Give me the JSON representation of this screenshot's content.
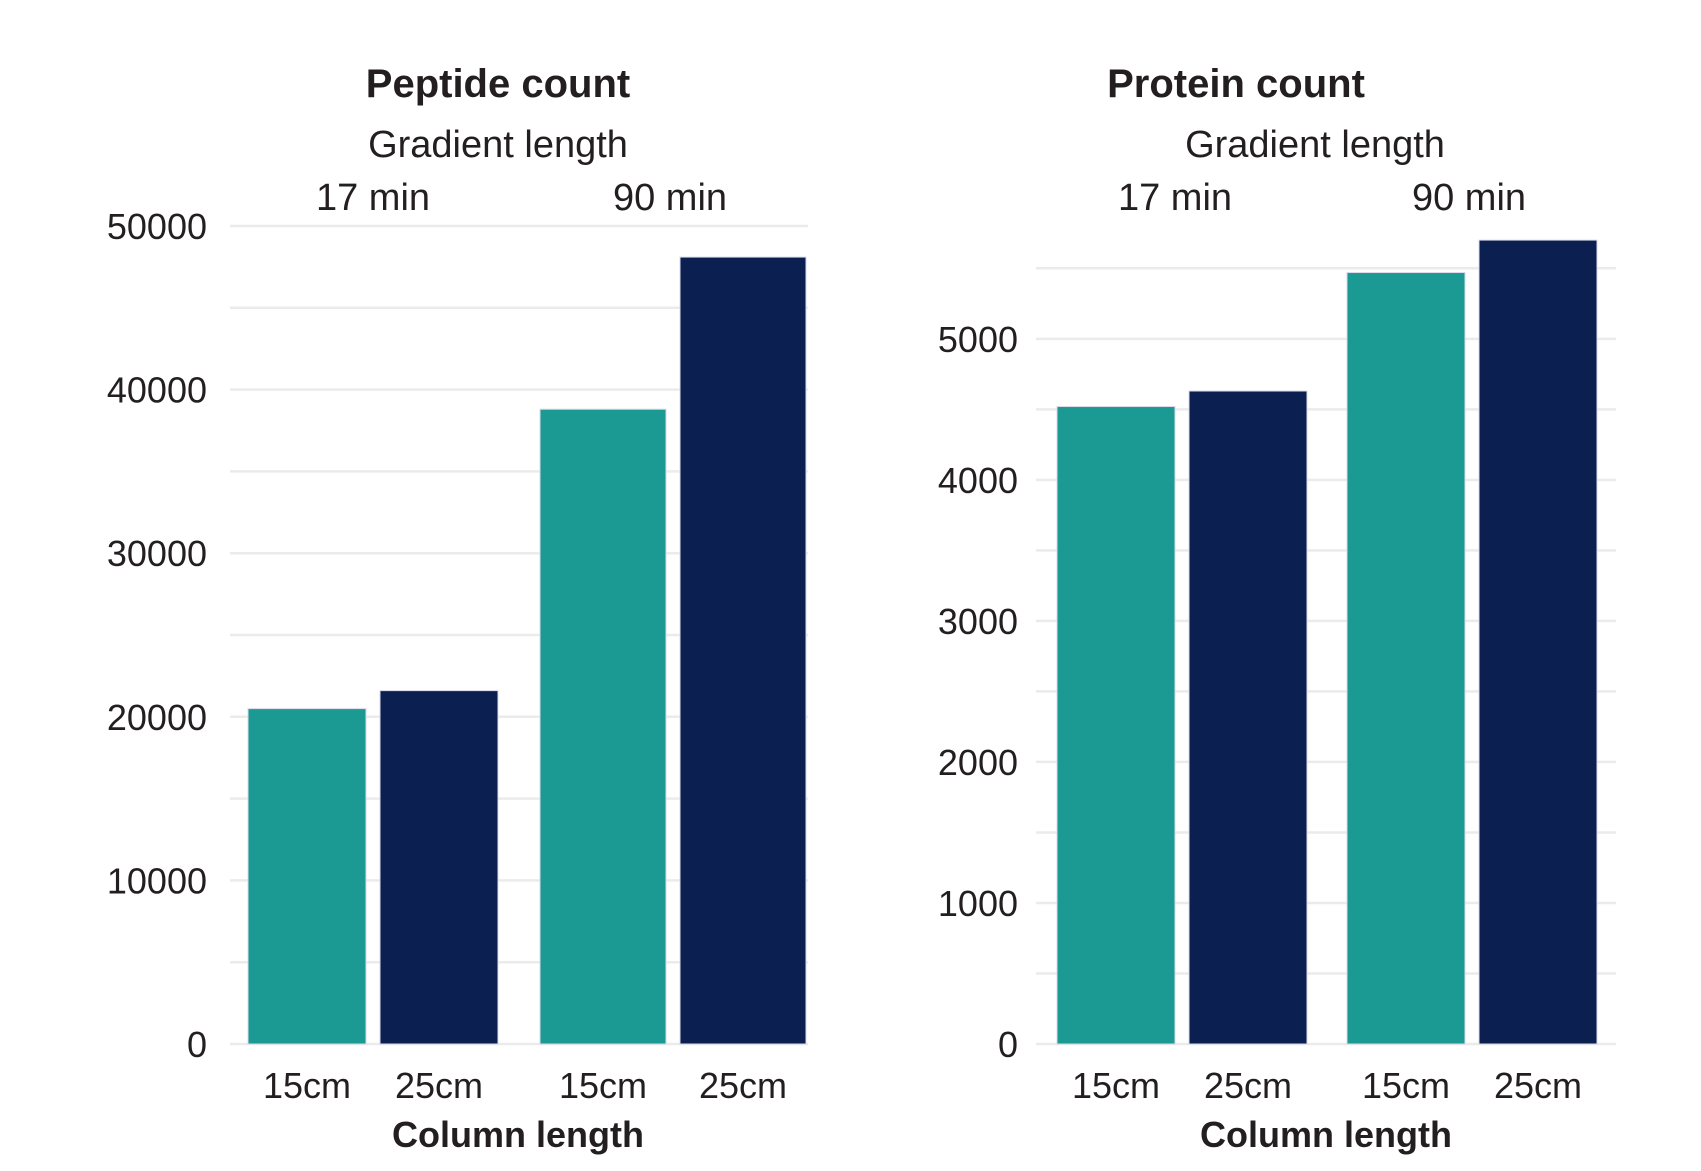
{
  "colors": {
    "teal": "#1a9a93",
    "navy": "#0b2050",
    "grid": "#ebebeb",
    "text": "#231f20"
  },
  "chart_data": [
    {
      "type": "bar",
      "title": "Peptide count",
      "facet_label": "Gradient length",
      "xlabel": "Column length",
      "ylabel": "",
      "ylim": [
        0,
        50000
      ],
      "yticks": [
        "0",
        "10000",
        "20000",
        "30000",
        "40000",
        "50000"
      ],
      "grid": true,
      "groups": [
        {
          "label": "17 min",
          "bars": [
            {
              "category": "15cm",
              "value": 20500,
              "color": "#1a9a93"
            },
            {
              "category": "25cm",
              "value": 21600,
              "color": "#0b2050"
            }
          ]
        },
        {
          "label": "90 min",
          "bars": [
            {
              "category": "15cm",
              "value": 38800,
              "color": "#1a9a93"
            },
            {
              "category": "25cm",
              "value": 48100,
              "color": "#0b2050"
            }
          ]
        }
      ]
    },
    {
      "type": "bar",
      "title": "Protein count",
      "facet_label": "Gradient length",
      "xlabel": "Column length",
      "ylabel": "",
      "ylim": [
        0,
        5800
      ],
      "yticks": [
        "0",
        "1000",
        "2000",
        "3000",
        "4000",
        "5000"
      ],
      "grid": true,
      "groups": [
        {
          "label": "17 min",
          "bars": [
            {
              "category": "15cm",
              "value": 4520,
              "color": "#1a9a93"
            },
            {
              "category": "25cm",
              "value": 4630,
              "color": "#0b2050"
            }
          ]
        },
        {
          "label": "90 min",
          "bars": [
            {
              "category": "15cm",
              "value": 5470,
              "color": "#1a9a93"
            },
            {
              "category": "25cm",
              "value": 5700,
              "color": "#0b2050"
            }
          ]
        }
      ]
    }
  ]
}
